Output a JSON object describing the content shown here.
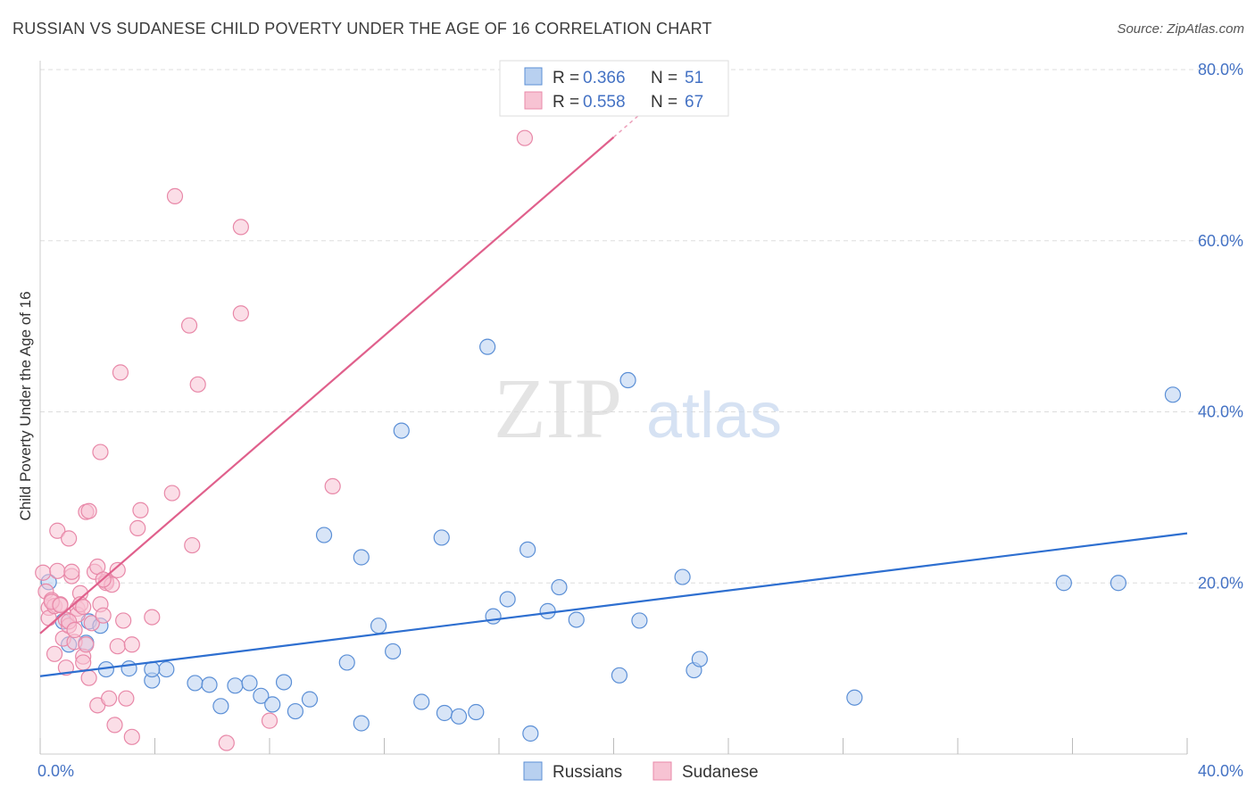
{
  "header": {
    "title": "RUSSIAN VS SUDANESE CHILD POVERTY UNDER THE AGE OF 16 CORRELATION CHART",
    "source": "Source: ZipAtlas.com"
  },
  "watermark": {
    "zip": "ZIP",
    "atlas": "atlas"
  },
  "legend": {
    "items": [
      {
        "r_label": "R =",
        "r_value": "0.366",
        "n_label": "N =",
        "n_value": "51"
      },
      {
        "r_label": "R =",
        "r_value": "0.558",
        "n_label": "N =",
        "n_value": "67"
      }
    ]
  },
  "bottom_legend": {
    "items": [
      "Russians",
      "Sudanese"
    ]
  },
  "colors": {
    "blue_fill": "#b8d0f0",
    "blue_stroke": "#5b8fd6",
    "blue_line": "#2e6fd0",
    "pink_fill": "#f7c3d3",
    "pink_stroke": "#e888a8",
    "pink_line": "#e0608c",
    "grid": "#dddddd",
    "axis_text": "#4472c4"
  },
  "chart_data": {
    "type": "scatter",
    "title": "RUSSIAN VS SUDANESE CHILD POVERTY UNDER THE AGE OF 16 CORRELATION CHART",
    "xlabel": "",
    "ylabel": "Child Poverty Under the Age of 16",
    "xlim": [
      0,
      40
    ],
    "ylim": [
      0,
      80
    ],
    "x_ticks": [
      {
        "value": 0,
        "label": "0.0%"
      },
      {
        "value": 40,
        "label": "40.0%"
      }
    ],
    "y_ticks": [
      {
        "value": 20,
        "label": "20.0%"
      },
      {
        "value": 40,
        "label": "40.0%"
      },
      {
        "value": 60,
        "label": "60.0%"
      },
      {
        "value": 80,
        "label": "80.0%"
      }
    ],
    "grid": true,
    "legend_position": "top-center",
    "series": [
      {
        "name": "Russians",
        "r": 0.366,
        "n": 51,
        "trend": {
          "x0": 0,
          "y0": 9.1,
          "x1": 40,
          "y1": 25.8
        },
        "points": [
          [
            0.3,
            20.1
          ],
          [
            1.0,
            12.8
          ],
          [
            1.7,
            15.5
          ],
          [
            2.3,
            9.9
          ],
          [
            3.1,
            10.0
          ],
          [
            3.9,
            8.6
          ],
          [
            4.4,
            9.9
          ],
          [
            3.9,
            9.9
          ],
          [
            5.4,
            8.3
          ],
          [
            5.9,
            8.1
          ],
          [
            6.3,
            5.6
          ],
          [
            6.8,
            8.0
          ],
          [
            7.3,
            8.3
          ],
          [
            7.7,
            6.8
          ],
          [
            8.1,
            5.8
          ],
          [
            8.5,
            8.4
          ],
          [
            8.9,
            5.0
          ],
          [
            9.4,
            6.4
          ],
          [
            9.9,
            25.6
          ],
          [
            10.7,
            10.7
          ],
          [
            11.2,
            3.6
          ],
          [
            11.2,
            23.0
          ],
          [
            11.8,
            15.0
          ],
          [
            12.3,
            12.0
          ],
          [
            12.6,
            37.8
          ],
          [
            13.3,
            6.1
          ],
          [
            14.0,
            25.3
          ],
          [
            14.1,
            4.8
          ],
          [
            14.6,
            4.4
          ],
          [
            15.2,
            4.9
          ],
          [
            15.6,
            47.6
          ],
          [
            15.8,
            16.1
          ],
          [
            16.3,
            18.1
          ],
          [
            17.0,
            23.9
          ],
          [
            17.1,
            2.4
          ],
          [
            17.7,
            16.7
          ],
          [
            18.1,
            19.5
          ],
          [
            18.7,
            15.7
          ],
          [
            20.2,
            9.2
          ],
          [
            20.5,
            43.7
          ],
          [
            20.9,
            15.6
          ],
          [
            22.4,
            20.7
          ],
          [
            22.8,
            9.8
          ],
          [
            23.0,
            11.1
          ],
          [
            28.4,
            6.6
          ],
          [
            35.7,
            20.0
          ],
          [
            37.6,
            20.0
          ],
          [
            39.5,
            42.0
          ],
          [
            2.1,
            15.0
          ],
          [
            0.8,
            15.5
          ],
          [
            1.6,
            13.0
          ]
        ]
      },
      {
        "name": "Sudanese",
        "r": 0.558,
        "n": 67,
        "trend": {
          "x0": 0,
          "y0": 14.1,
          "x1": 20.0,
          "y1": 72.1,
          "dash_to_x": 21.5,
          "dash_to_y": 76.5
        },
        "points": [
          [
            0.1,
            21.2
          ],
          [
            0.2,
            19.0
          ],
          [
            0.3,
            17.1
          ],
          [
            0.3,
            15.9
          ],
          [
            0.4,
            18.0
          ],
          [
            0.5,
            17.3
          ],
          [
            0.5,
            11.7
          ],
          [
            0.6,
            21.4
          ],
          [
            0.6,
            26.1
          ],
          [
            0.7,
            17.5
          ],
          [
            0.8,
            13.5
          ],
          [
            0.9,
            15.7
          ],
          [
            0.9,
            10.1
          ],
          [
            1.0,
            25.2
          ],
          [
            1.0,
            15.0
          ],
          [
            1.1,
            20.8
          ],
          [
            1.1,
            21.3
          ],
          [
            1.2,
            13.1
          ],
          [
            1.3,
            17.0
          ],
          [
            1.3,
            16.3
          ],
          [
            1.4,
            18.8
          ],
          [
            1.4,
            17.5
          ],
          [
            1.5,
            11.4
          ],
          [
            1.5,
            10.7
          ],
          [
            1.6,
            28.3
          ],
          [
            1.6,
            12.8
          ],
          [
            1.7,
            8.9
          ],
          [
            1.7,
            28.4
          ],
          [
            1.8,
            15.3
          ],
          [
            1.9,
            21.3
          ],
          [
            2.0,
            21.9
          ],
          [
            2.0,
            5.7
          ],
          [
            2.1,
            17.5
          ],
          [
            2.1,
            35.3
          ],
          [
            2.2,
            16.2
          ],
          [
            2.3,
            20.2
          ],
          [
            2.3,
            20.0
          ],
          [
            2.4,
            6.5
          ],
          [
            2.5,
            19.8
          ],
          [
            2.6,
            3.4
          ],
          [
            2.7,
            21.5
          ],
          [
            2.7,
            12.6
          ],
          [
            2.8,
            44.6
          ],
          [
            2.9,
            15.6
          ],
          [
            3.0,
            6.5
          ],
          [
            3.2,
            12.8
          ],
          [
            3.2,
            2.0
          ],
          [
            3.4,
            26.4
          ],
          [
            3.5,
            28.5
          ],
          [
            3.9,
            16.0
          ],
          [
            4.6,
            30.5
          ],
          [
            4.7,
            65.2
          ],
          [
            5.2,
            50.1
          ],
          [
            5.3,
            24.4
          ],
          [
            5.5,
            43.2
          ],
          [
            6.5,
            1.3
          ],
          [
            7.0,
            61.6
          ],
          [
            7.0,
            51.5
          ],
          [
            8.0,
            3.9
          ],
          [
            10.2,
            31.3
          ],
          [
            16.9,
            72.0
          ],
          [
            0.4,
            17.8
          ],
          [
            0.7,
            17.4
          ],
          [
            1.0,
            15.5
          ],
          [
            1.2,
            14.5
          ],
          [
            1.5,
            17.2
          ],
          [
            2.2,
            20.4
          ]
        ]
      }
    ]
  }
}
